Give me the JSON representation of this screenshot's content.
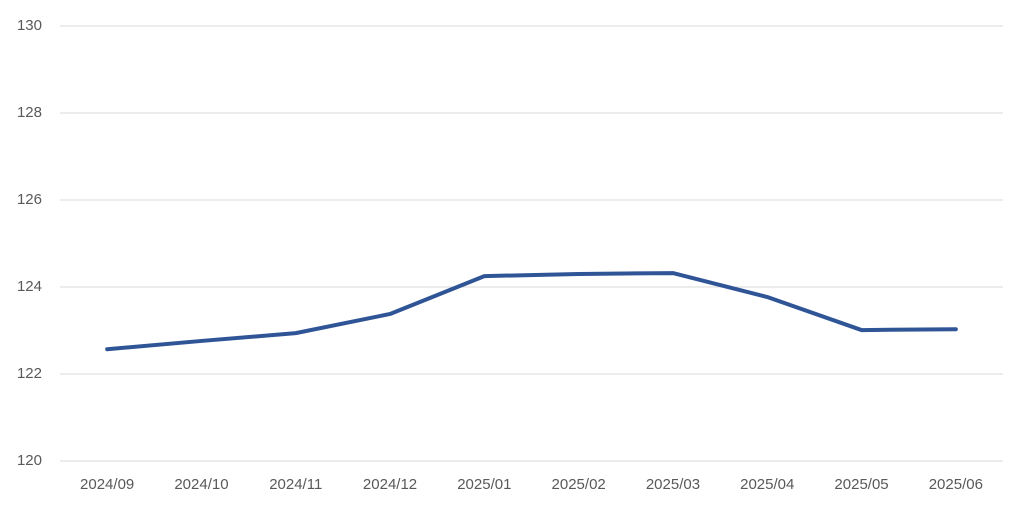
{
  "chart_data": {
    "type": "line",
    "categories": [
      "2024/09",
      "2024/10",
      "2024/11",
      "2024/12",
      "2025/01",
      "2025/02",
      "2025/03",
      "2025/04",
      "2025/05",
      "2025/06"
    ],
    "values": [
      122.57,
      122.76,
      122.94,
      123.38,
      124.25,
      124.3,
      124.32,
      123.77,
      123.01,
      123.03
    ],
    "color": "#2f5597",
    "ylim": [
      120,
      130
    ],
    "yticks": [
      120,
      122,
      124,
      126,
      128,
      130
    ],
    "grid": true
  }
}
